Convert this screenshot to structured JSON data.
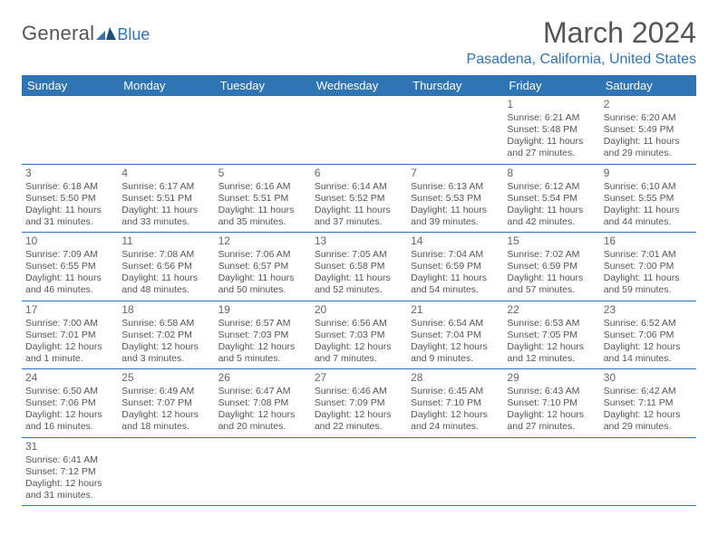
{
  "brand": {
    "part1": "General",
    "part2": "Blue"
  },
  "title": "March 2024",
  "location": "Pasadena, California, United States",
  "colors": {
    "accent": "#2f74b5",
    "header_bg": "#2f74b5",
    "header_fg": "#ffffff",
    "text": "#555555"
  },
  "weekday_labels": [
    "Sunday",
    "Monday",
    "Tuesday",
    "Wednesday",
    "Thursday",
    "Friday",
    "Saturday"
  ],
  "first_weekday_index": 5,
  "days": [
    {
      "n": 1,
      "sunrise": "6:21 AM",
      "sunset": "5:48 PM",
      "daylight": "11 hours and 27 minutes."
    },
    {
      "n": 2,
      "sunrise": "6:20 AM",
      "sunset": "5:49 PM",
      "daylight": "11 hours and 29 minutes."
    },
    {
      "n": 3,
      "sunrise": "6:18 AM",
      "sunset": "5:50 PM",
      "daylight": "11 hours and 31 minutes."
    },
    {
      "n": 4,
      "sunrise": "6:17 AM",
      "sunset": "5:51 PM",
      "daylight": "11 hours and 33 minutes."
    },
    {
      "n": 5,
      "sunrise": "6:16 AM",
      "sunset": "5:51 PM",
      "daylight": "11 hours and 35 minutes."
    },
    {
      "n": 6,
      "sunrise": "6:14 AM",
      "sunset": "5:52 PM",
      "daylight": "11 hours and 37 minutes."
    },
    {
      "n": 7,
      "sunrise": "6:13 AM",
      "sunset": "5:53 PM",
      "daylight": "11 hours and 39 minutes."
    },
    {
      "n": 8,
      "sunrise": "6:12 AM",
      "sunset": "5:54 PM",
      "daylight": "11 hours and 42 minutes."
    },
    {
      "n": 9,
      "sunrise": "6:10 AM",
      "sunset": "5:55 PM",
      "daylight": "11 hours and 44 minutes."
    },
    {
      "n": 10,
      "sunrise": "7:09 AM",
      "sunset": "6:55 PM",
      "daylight": "11 hours and 46 minutes."
    },
    {
      "n": 11,
      "sunrise": "7:08 AM",
      "sunset": "6:56 PM",
      "daylight": "11 hours and 48 minutes."
    },
    {
      "n": 12,
      "sunrise": "7:06 AM",
      "sunset": "6:57 PM",
      "daylight": "11 hours and 50 minutes."
    },
    {
      "n": 13,
      "sunrise": "7:05 AM",
      "sunset": "6:58 PM",
      "daylight": "11 hours and 52 minutes."
    },
    {
      "n": 14,
      "sunrise": "7:04 AM",
      "sunset": "6:59 PM",
      "daylight": "11 hours and 54 minutes."
    },
    {
      "n": 15,
      "sunrise": "7:02 AM",
      "sunset": "6:59 PM",
      "daylight": "11 hours and 57 minutes."
    },
    {
      "n": 16,
      "sunrise": "7:01 AM",
      "sunset": "7:00 PM",
      "daylight": "11 hours and 59 minutes."
    },
    {
      "n": 17,
      "sunrise": "7:00 AM",
      "sunset": "7:01 PM",
      "daylight": "12 hours and 1 minute."
    },
    {
      "n": 18,
      "sunrise": "6:58 AM",
      "sunset": "7:02 PM",
      "daylight": "12 hours and 3 minutes."
    },
    {
      "n": 19,
      "sunrise": "6:57 AM",
      "sunset": "7:03 PM",
      "daylight": "12 hours and 5 minutes."
    },
    {
      "n": 20,
      "sunrise": "6:56 AM",
      "sunset": "7:03 PM",
      "daylight": "12 hours and 7 minutes."
    },
    {
      "n": 21,
      "sunrise": "6:54 AM",
      "sunset": "7:04 PM",
      "daylight": "12 hours and 9 minutes."
    },
    {
      "n": 22,
      "sunrise": "6:53 AM",
      "sunset": "7:05 PM",
      "daylight": "12 hours and 12 minutes."
    },
    {
      "n": 23,
      "sunrise": "6:52 AM",
      "sunset": "7:06 PM",
      "daylight": "12 hours and 14 minutes."
    },
    {
      "n": 24,
      "sunrise": "6:50 AM",
      "sunset": "7:06 PM",
      "daylight": "12 hours and 16 minutes."
    },
    {
      "n": 25,
      "sunrise": "6:49 AM",
      "sunset": "7:07 PM",
      "daylight": "12 hours and 18 minutes."
    },
    {
      "n": 26,
      "sunrise": "6:47 AM",
      "sunset": "7:08 PM",
      "daylight": "12 hours and 20 minutes."
    },
    {
      "n": 27,
      "sunrise": "6:46 AM",
      "sunset": "7:09 PM",
      "daylight": "12 hours and 22 minutes."
    },
    {
      "n": 28,
      "sunrise": "6:45 AM",
      "sunset": "7:10 PM",
      "daylight": "12 hours and 24 minutes."
    },
    {
      "n": 29,
      "sunrise": "6:43 AM",
      "sunset": "7:10 PM",
      "daylight": "12 hours and 27 minutes."
    },
    {
      "n": 30,
      "sunrise": "6:42 AM",
      "sunset": "7:11 PM",
      "daylight": "12 hours and 29 minutes."
    },
    {
      "n": 31,
      "sunrise": "6:41 AM",
      "sunset": "7:12 PM",
      "daylight": "12 hours and 31 minutes."
    }
  ],
  "labels": {
    "sunrise": "Sunrise:",
    "sunset": "Sunset:",
    "daylight": "Daylight:"
  }
}
